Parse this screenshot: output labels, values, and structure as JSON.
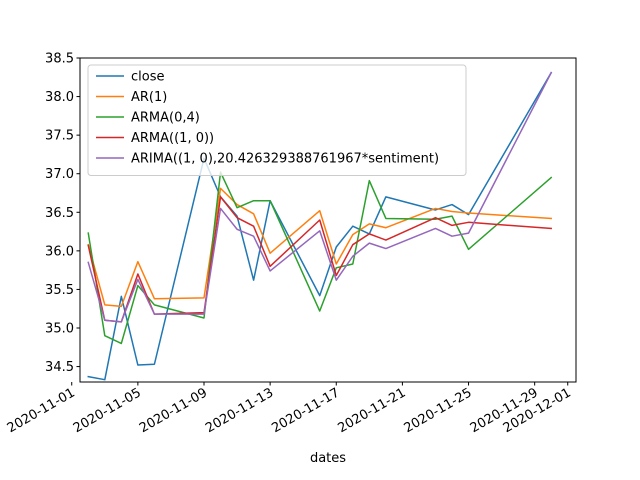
{
  "chart_data": {
    "type": "line",
    "title": "",
    "xlabel": "dates",
    "ylabel": "",
    "xlim": [
      "2020-11-01T12:00",
      "2020-12-01T12:00"
    ],
    "ylim": [
      34.3,
      38.5
    ],
    "x_ticks": [
      "2020-11-01",
      "2020-11-05",
      "2020-11-09",
      "2020-11-13",
      "2020-11-17",
      "2020-11-21",
      "2020-11-25",
      "2020-11-29",
      "2020-12-01"
    ],
    "y_ticks": [
      "34.5",
      "35.0",
      "35.5",
      "36.0",
      "36.5",
      "37.0",
      "37.5",
      "38.0",
      "38.5"
    ],
    "grid": false,
    "legend_position": "top-left",
    "series": [
      {
        "name": "close",
        "color": "#1f77b4",
        "x": [
          "2020-11-02",
          "2020-11-03",
          "2020-11-04",
          "2020-11-05",
          "2020-11-06",
          "2020-11-09",
          "2020-11-10",
          "2020-11-11",
          "2020-11-12",
          "2020-11-13",
          "2020-11-16",
          "2020-11-17",
          "2020-11-18",
          "2020-11-19",
          "2020-11-20",
          "2020-11-23",
          "2020-11-24",
          "2020-11-25",
          "2020-11-30"
        ],
        "values": [
          34.37,
          34.33,
          35.41,
          34.52,
          34.53,
          37.2,
          36.7,
          36.45,
          35.62,
          36.65,
          35.42,
          36.05,
          36.32,
          36.22,
          36.7,
          36.53,
          36.6,
          36.47,
          38.31
        ]
      },
      {
        "name": "AR(1)",
        "color": "#ff7f0e",
        "x": [
          "2020-11-02",
          "2020-11-03",
          "2020-11-04",
          "2020-11-05",
          "2020-11-06",
          "2020-11-09",
          "2020-11-10",
          "2020-11-11",
          "2020-11-12",
          "2020-11-13",
          "2020-11-16",
          "2020-11-17",
          "2020-11-18",
          "2020-11-19",
          "2020-11-20",
          "2020-11-23",
          "2020-11-24",
          "2020-11-25",
          "2020-11-30"
        ],
        "values": [
          36.08,
          35.3,
          35.28,
          35.86,
          35.38,
          35.39,
          36.81,
          36.6,
          36.48,
          35.97,
          36.52,
          35.83,
          36.21,
          36.35,
          36.3,
          36.55,
          36.51,
          36.49,
          36.42
        ]
      },
      {
        "name": "ARMA(0,4)",
        "color": "#2ca02c",
        "x": [
          "2020-11-02",
          "2020-11-03",
          "2020-11-04",
          "2020-11-05",
          "2020-11-06",
          "2020-11-09",
          "2020-11-10",
          "2020-11-11",
          "2020-11-12",
          "2020-11-13",
          "2020-11-16",
          "2020-11-17",
          "2020-11-18",
          "2020-11-19",
          "2020-11-20",
          "2020-11-23",
          "2020-11-24",
          "2020-11-25",
          "2020-11-30"
        ],
        "values": [
          36.23,
          34.9,
          34.8,
          35.55,
          35.3,
          35.13,
          37.02,
          36.56,
          36.65,
          36.65,
          35.22,
          35.78,
          35.83,
          36.91,
          36.42,
          36.41,
          36.45,
          36.02,
          36.95
        ]
      },
      {
        "name": "ARMA((1, 0))",
        "color": "#d62728",
        "x": [
          "2020-11-02",
          "2020-11-03",
          "2020-11-04",
          "2020-11-05",
          "2020-11-06",
          "2020-11-09",
          "2020-11-10",
          "2020-11-11",
          "2020-11-12",
          "2020-11-13",
          "2020-11-16",
          "2020-11-17",
          "2020-11-18",
          "2020-11-19",
          "2020-11-20",
          "2020-11-23",
          "2020-11-24",
          "2020-11-25",
          "2020-11-30"
        ],
        "values": [
          36.07,
          35.1,
          35.08,
          35.7,
          35.18,
          35.2,
          36.7,
          36.43,
          36.32,
          35.8,
          36.4,
          35.68,
          36.08,
          36.22,
          36.14,
          36.43,
          36.33,
          36.37,
          36.29
        ]
      },
      {
        "name": "ARIMA((1, 0),20.426329388761967*sentiment)",
        "color": "#9467bd",
        "x": [
          "2020-11-02",
          "2020-11-03",
          "2020-11-04",
          "2020-11-05",
          "2020-11-06",
          "2020-11-09",
          "2020-11-10",
          "2020-11-11",
          "2020-11-12",
          "2020-11-13",
          "2020-11-16",
          "2020-11-17",
          "2020-11-18",
          "2020-11-19",
          "2020-11-20",
          "2020-11-23",
          "2020-11-24",
          "2020-11-25",
          "2020-11-30"
        ],
        "values": [
          35.85,
          35.1,
          35.08,
          35.63,
          35.18,
          35.18,
          36.55,
          36.28,
          36.19,
          35.74,
          36.26,
          35.62,
          35.93,
          36.1,
          36.03,
          36.29,
          36.19,
          36.23,
          38.31
        ]
      }
    ]
  }
}
